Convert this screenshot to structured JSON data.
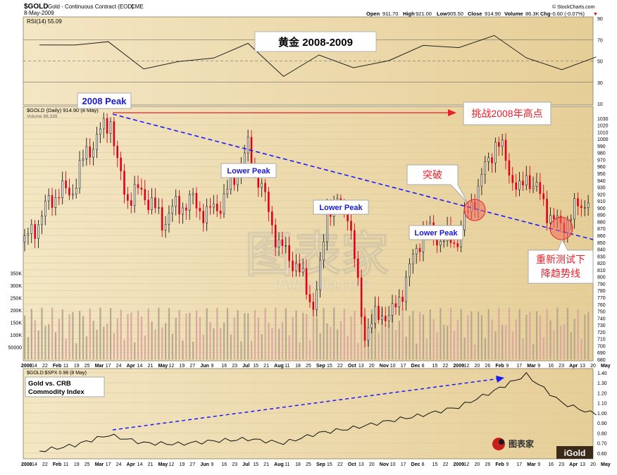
{
  "header": {
    "symbol": "$GOLD",
    "name": "Gold - Continuous Contract (EOD)",
    "exchange": "CME",
    "date": "8-May-2009",
    "open_label": "Open",
    "open": "911.70",
    "high_label": "High",
    "high": "921.00",
    "low_label": "Low",
    "low": "905.50",
    "close_label": "Close",
    "close": "914.90",
    "volume_label": "Volume",
    "volume": "86.3K",
    "chg_label": "Chg",
    "chg": "-0.60 (-0.07%)",
    "credit": "© StockCharts.com"
  },
  "rsi_panel": {
    "label": "RSI(14) 55.09",
    "title": "黄金 2008-2009",
    "ticks": [
      "90",
      "70",
      "50",
      "30",
      "10"
    ]
  },
  "price_panel": {
    "label": "$GOLD (Daily) 914.90 (8 May)",
    "volume_label": "Volume 86,339",
    "ticks": [
      "1030",
      "1020",
      "1010",
      "1000",
      "990",
      "980",
      "970",
      "960",
      "950",
      "940",
      "930",
      "920",
      "910",
      "900",
      "890",
      "880",
      "870",
      "860",
      "850",
      "840",
      "830",
      "820",
      "810",
      "800",
      "790",
      "780",
      "770",
      "760",
      "750",
      "740",
      "730",
      "720",
      "710",
      "700",
      "690",
      "680"
    ],
    "volume_ticks": [
      "350K",
      "300K",
      "250K",
      "200K",
      "150K",
      "100K",
      "50000"
    ]
  },
  "ratio_panel": {
    "label_line1": "Gold vs. CRB",
    "label_line2": "Commodity Index",
    "series_label": "$GOLD:$SPX 0.98 (8 May)",
    "ticks": [
      "1.40",
      "1.30",
      "1.20",
      "1.10",
      "1.00",
      "0.90",
      "0.80",
      "0.70",
      "0.60"
    ]
  },
  "x_axis_labels": [
    "2008",
    "14",
    "22",
    "Feb",
    "11",
    "19",
    "25",
    "Mar",
    "17",
    "24",
    "Apr",
    "14",
    "21",
    "May",
    "12",
    "19",
    "27",
    "Jun",
    "9",
    "16",
    "23",
    "Jul",
    "15",
    "21",
    "Aug",
    "11",
    "18",
    "25",
    "Sep",
    "15",
    "22",
    "Oct",
    "13",
    "20",
    "Nov",
    "10",
    "17",
    "Dec",
    "8",
    "15",
    "22",
    "2009",
    "12",
    "20",
    "26",
    "Feb",
    "9",
    "17",
    "Mar",
    "9",
    "16",
    "23",
    "Apr",
    "13",
    "20",
    "May"
  ],
  "annotations": {
    "peak_2008": "2008 Peak",
    "lower_peak": "Lower Peak",
    "challenge": "挑战2008年高点",
    "breakout": "突破",
    "retest_line1": "重新测试下",
    "retest_line2": "降趋势线"
  },
  "watermarks": {
    "big_cn": "图表家",
    "big_en": "Tubiaojia.com",
    "logo_cn": "图表家",
    "logo_igold": "iGold"
  },
  "colors": {
    "panel_bg": "#f5e9c6",
    "up_candle": "#1a1a1a",
    "down_candle": "#e0001b",
    "trendline": "#1a1aff",
    "red_arrow": "#e8202a",
    "label_blue": "#1a1acc",
    "volume_bar": "#c9b6a0",
    "rsi_line": "#222222"
  },
  "chart_data": [
    {
      "type": "line",
      "title": "黄金 2008-2009",
      "series": [
        {
          "name": "RSI(14) 55.09",
          "x": [
            "2008-01",
            "2008-02",
            "2008-03",
            "2008-04",
            "2008-05",
            "2008-06",
            "2008-07",
            "2008-08",
            "2008-09",
            "2008-10",
            "2008-11",
            "2008-12",
            "2009-01",
            "2009-02",
            "2009-03",
            "2009-04",
            "2009-05"
          ],
          "values": [
            65,
            66,
            70,
            45,
            52,
            55,
            68,
            36,
            55,
            42,
            48,
            62,
            60,
            72,
            52,
            42,
            55
          ]
        }
      ],
      "ylim": [
        10,
        90
      ]
    },
    {
      "type": "line",
      "series": [
        {
          "name": "$GOLD (Daily) 914.90 (8 May)",
          "x": [
            "2008-01-02",
            "2008-01-14",
            "2008-01-22",
            "2008-02-01",
            "2008-02-11",
            "2008-02-25",
            "2008-03-17",
            "2008-03-24",
            "2008-04-01",
            "2008-04-14",
            "2008-05-01",
            "2008-05-12",
            "2008-05-27",
            "2008-06-09",
            "2008-06-23",
            "2008-07-15",
            "2008-07-21",
            "2008-08-11",
            "2008-08-25",
            "2008-09-10",
            "2008-09-15",
            "2008-09-22",
            "2008-10-10",
            "2008-10-24",
            "2008-11-10",
            "2008-11-17",
            "2008-12-01",
            "2008-12-15",
            "2008-12-22",
            "2009-01-12",
            "2009-01-20",
            "2009-02-01",
            "2009-02-17",
            "2009-03-09",
            "2009-03-16",
            "2009-04-01",
            "2009-04-13",
            "2009-04-20",
            "2009-05-08"
          ],
          "values": [
            850,
            880,
            905,
            925,
            920,
            980,
            1030,
            950,
            915,
            925,
            880,
            900,
            910,
            890,
            910,
            985,
            960,
            845,
            820,
            760,
            790,
            905,
            900,
            720,
            750,
            740,
            800,
            870,
            860,
            850,
            880,
            930,
            1000,
            920,
            950,
            900,
            870,
            885,
            915
          ]
        }
      ],
      "ylim": [
        680,
        1040
      ],
      "annotations": [
        "2008 Peak",
        "Lower Peak",
        "Lower Peak",
        "Lower Peak",
        "挑战2008年高点",
        "突破",
        "重新测试下降趋势线"
      ]
    },
    {
      "type": "line",
      "series": [
        {
          "name": "$GOLD:$SPX 0.98 (8 May)",
          "x": [
            "2008-01",
            "2008-02",
            "2008-03",
            "2008-04",
            "2008-05",
            "2008-06",
            "2008-07",
            "2008-08",
            "2008-09",
            "2008-10",
            "2008-11",
            "2008-12",
            "2009-01",
            "2009-02",
            "2009-03",
            "2009-04",
            "2009-05"
          ],
          "values": [
            0.62,
            0.68,
            0.78,
            0.7,
            0.69,
            0.72,
            0.74,
            0.7,
            0.8,
            0.85,
            0.92,
            0.98,
            1.06,
            1.22,
            1.38,
            1.1,
            0.98
          ]
        }
      ],
      "ylim": [
        0.55,
        1.42
      ]
    }
  ]
}
